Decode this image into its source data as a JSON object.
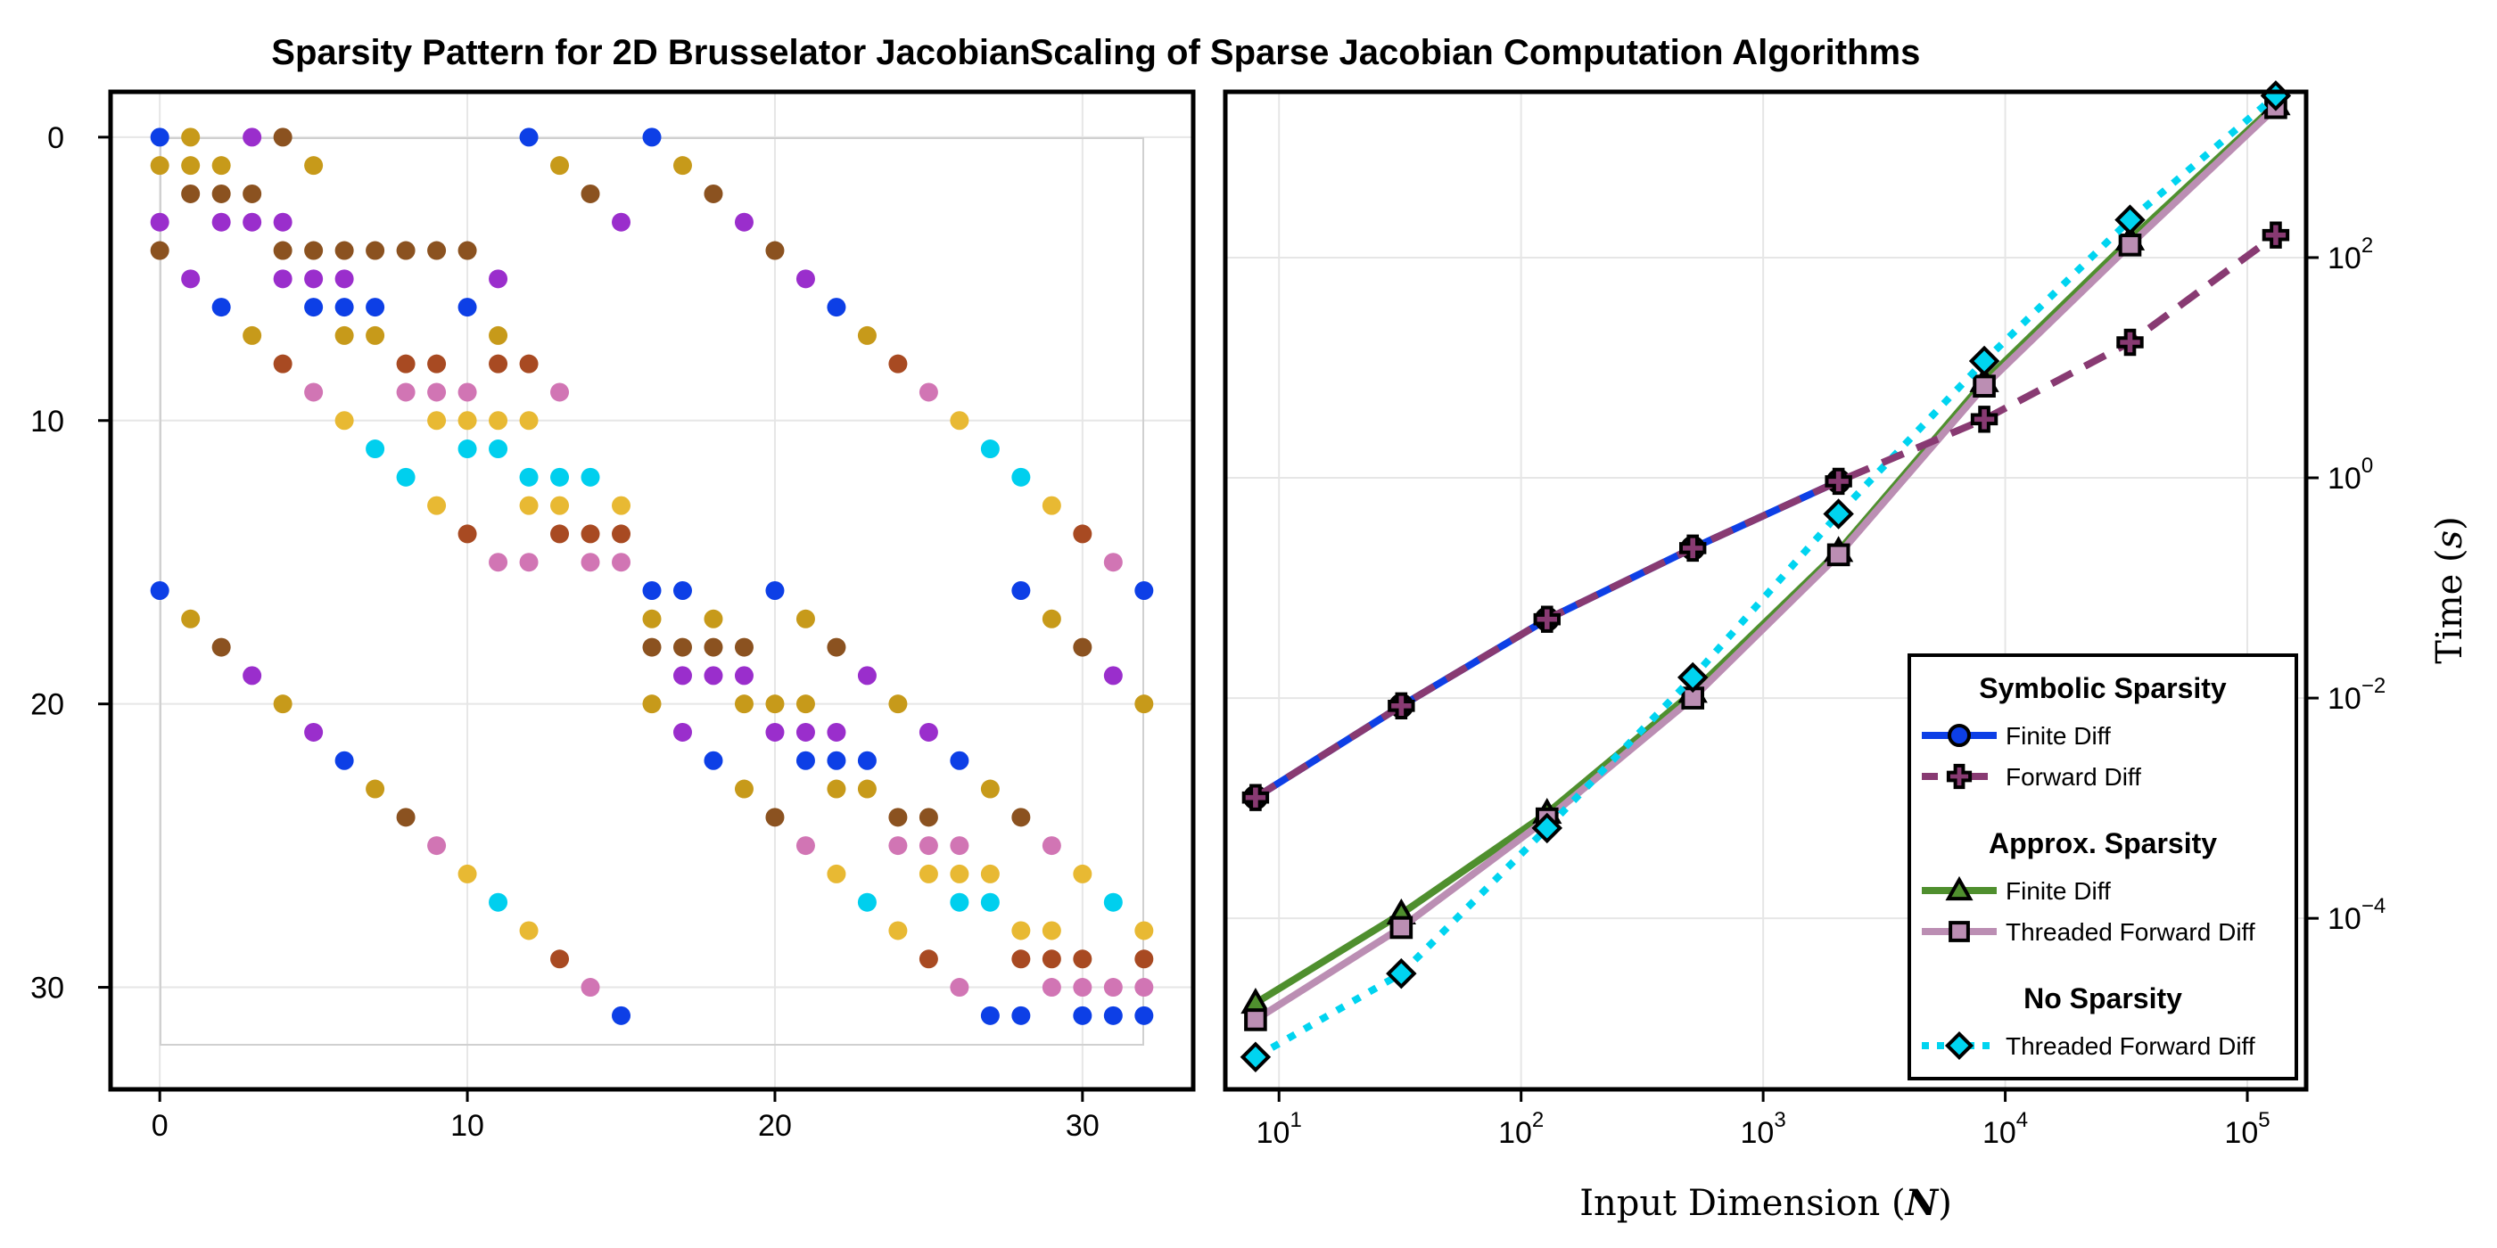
{
  "chart_data": [
    {
      "type": "scatter",
      "title": "Sparsity Pattern for 2D Brusselator Jacobian",
      "xlim": [
        -1.6,
        33.6
      ],
      "ylim": [
        -1.6,
        33.6
      ],
      "y_inverted": true,
      "grid": true,
      "xticks": [
        "0",
        "10",
        "20",
        "30"
      ],
      "yticks": [
        "0",
        "10",
        "20",
        "30"
      ],
      "tick_values": [
        0,
        10,
        20,
        30
      ],
      "colors": [
        "#0d3fe6",
        "#c79a1a",
        "#8b5220",
        "#9a2ecc",
        "#e8b933",
        "#d175b4",
        "#a84a22",
        "#00cfee"
      ],
      "points": [
        [
          0,
          0,
          0
        ],
        [
          1,
          0,
          1
        ],
        [
          3,
          0,
          3
        ],
        [
          4,
          0,
          2
        ],
        [
          12,
          0,
          0
        ],
        [
          16,
          0,
          0
        ],
        [
          0,
          1,
          1
        ],
        [
          1,
          1,
          1
        ],
        [
          2,
          1,
          1
        ],
        [
          5,
          1,
          1
        ],
        [
          13,
          1,
          1
        ],
        [
          17,
          1,
          1
        ],
        [
          1,
          2,
          2
        ],
        [
          2,
          2,
          2
        ],
        [
          3,
          2,
          2
        ],
        [
          14,
          2,
          2
        ],
        [
          18,
          2,
          2
        ],
        [
          0,
          3,
          3
        ],
        [
          2,
          3,
          3
        ],
        [
          3,
          3,
          3
        ],
        [
          4,
          3,
          3
        ],
        [
          15,
          3,
          3
        ],
        [
          19,
          3,
          3
        ],
        [
          0,
          4,
          2
        ],
        [
          4,
          4,
          2
        ],
        [
          5,
          4,
          2
        ],
        [
          6,
          4,
          2
        ],
        [
          7,
          4,
          2
        ],
        [
          8,
          4,
          2
        ],
        [
          9,
          4,
          2
        ],
        [
          10,
          4,
          2
        ],
        [
          20,
          4,
          2
        ],
        [
          1,
          5,
          3
        ],
        [
          4,
          5,
          3
        ],
        [
          5,
          5,
          3
        ],
        [
          6,
          5,
          3
        ],
        [
          11,
          5,
          3
        ],
        [
          21,
          5,
          3
        ],
        [
          2,
          6,
          0
        ],
        [
          5,
          6,
          0
        ],
        [
          6,
          6,
          0
        ],
        [
          7,
          6,
          0
        ],
        [
          10,
          6,
          0
        ],
        [
          22,
          6,
          0
        ],
        [
          3,
          7,
          1
        ],
        [
          6,
          7,
          1
        ],
        [
          7,
          7,
          1
        ],
        [
          11,
          7,
          1
        ],
        [
          23,
          7,
          1
        ],
        [
          4,
          8,
          6
        ],
        [
          8,
          8,
          6
        ],
        [
          9,
          8,
          6
        ],
        [
          11,
          8,
          6
        ],
        [
          12,
          8,
          6
        ],
        [
          24,
          8,
          6
        ],
        [
          5,
          9,
          5
        ],
        [
          8,
          9,
          5
        ],
        [
          9,
          9,
          5
        ],
        [
          10,
          9,
          5
        ],
        [
          13,
          9,
          5
        ],
        [
          25,
          9,
          5
        ],
        [
          6,
          10,
          4
        ],
        [
          9,
          10,
          4
        ],
        [
          10,
          10,
          4
        ],
        [
          11,
          10,
          4
        ],
        [
          12,
          10,
          4
        ],
        [
          26,
          10,
          4
        ],
        [
          7,
          11,
          7
        ],
        [
          10,
          11,
          7
        ],
        [
          11,
          11,
          7
        ],
        [
          27,
          11,
          7
        ],
        [
          8,
          12,
          7
        ],
        [
          12,
          12,
          7
        ],
        [
          13,
          12,
          7
        ],
        [
          14,
          12,
          7
        ],
        [
          28,
          12,
          7
        ],
        [
          9,
          13,
          4
        ],
        [
          12,
          13,
          4
        ],
        [
          13,
          13,
          4
        ],
        [
          15,
          13,
          4
        ],
        [
          29,
          13,
          4
        ],
        [
          10,
          14,
          6
        ],
        [
          13,
          14,
          6
        ],
        [
          14,
          14,
          6
        ],
        [
          15,
          14,
          6
        ],
        [
          30,
          14,
          6
        ],
        [
          11,
          15,
          5
        ],
        [
          12,
          15,
          5
        ],
        [
          14,
          15,
          5
        ],
        [
          15,
          15,
          5
        ],
        [
          31,
          15,
          5
        ],
        [
          0,
          16,
          0
        ],
        [
          16,
          16,
          0
        ],
        [
          17,
          16,
          0
        ],
        [
          20,
          16,
          0
        ],
        [
          28,
          16,
          0
        ],
        [
          32,
          16,
          0
        ],
        [
          1,
          17,
          1
        ],
        [
          16,
          17,
          1
        ],
        [
          18,
          17,
          1
        ],
        [
          21,
          17,
          1
        ],
        [
          29,
          17,
          1
        ],
        [
          2,
          18,
          2
        ],
        [
          16,
          18,
          2
        ],
        [
          17,
          18,
          2
        ],
        [
          18,
          18,
          2
        ],
        [
          19,
          18,
          2
        ],
        [
          22,
          18,
          2
        ],
        [
          30,
          18,
          2
        ],
        [
          3,
          19,
          3
        ],
        [
          17,
          19,
          3
        ],
        [
          18,
          19,
          3
        ],
        [
          19,
          19,
          3
        ],
        [
          23,
          19,
          3
        ],
        [
          31,
          19,
          3
        ],
        [
          4,
          20,
          1
        ],
        [
          16,
          20,
          1
        ],
        [
          19,
          20,
          1
        ],
        [
          20,
          20,
          1
        ],
        [
          21,
          20,
          1
        ],
        [
          24,
          20,
          1
        ],
        [
          32,
          20,
          1
        ],
        [
          5,
          21,
          3
        ],
        [
          17,
          21,
          3
        ],
        [
          20,
          21,
          3
        ],
        [
          21,
          21,
          3
        ],
        [
          22,
          21,
          3
        ],
        [
          25,
          21,
          3
        ],
        [
          6,
          22,
          0
        ],
        [
          18,
          22,
          0
        ],
        [
          21,
          22,
          0
        ],
        [
          22,
          22,
          0
        ],
        [
          23,
          22,
          0
        ],
        [
          26,
          22,
          0
        ],
        [
          7,
          23,
          1
        ],
        [
          19,
          23,
          1
        ],
        [
          22,
          23,
          1
        ],
        [
          23,
          23,
          1
        ],
        [
          27,
          23,
          1
        ],
        [
          8,
          24,
          2
        ],
        [
          20,
          24,
          2
        ],
        [
          24,
          24,
          2
        ],
        [
          25,
          24,
          2
        ],
        [
          28,
          24,
          2
        ],
        [
          9,
          25,
          5
        ],
        [
          21,
          25,
          5
        ],
        [
          24,
          25,
          5
        ],
        [
          25,
          25,
          5
        ],
        [
          26,
          25,
          5
        ],
        [
          29,
          25,
          5
        ],
        [
          10,
          26,
          4
        ],
        [
          22,
          26,
          4
        ],
        [
          25,
          26,
          4
        ],
        [
          26,
          26,
          4
        ],
        [
          27,
          26,
          4
        ],
        [
          30,
          26,
          4
        ],
        [
          11,
          27,
          7
        ],
        [
          23,
          27,
          7
        ],
        [
          26,
          27,
          7
        ],
        [
          27,
          27,
          7
        ],
        [
          31,
          27,
          7
        ],
        [
          12,
          28,
          4
        ],
        [
          24,
          28,
          4
        ],
        [
          28,
          28,
          4
        ],
        [
          29,
          28,
          4
        ],
        [
          32,
          28,
          4
        ],
        [
          13,
          29,
          6
        ],
        [
          25,
          29,
          6
        ],
        [
          28,
          29,
          6
        ],
        [
          29,
          29,
          6
        ],
        [
          30,
          29,
          6
        ],
        [
          32,
          29,
          6
        ],
        [
          14,
          30,
          5
        ],
        [
          26,
          30,
          5
        ],
        [
          29,
          30,
          5
        ],
        [
          30,
          30,
          5
        ],
        [
          31,
          30,
          5
        ],
        [
          32,
          30,
          5
        ],
        [
          15,
          31,
          0
        ],
        [
          27,
          31,
          0
        ],
        [
          28,
          31,
          0
        ],
        [
          30,
          31,
          0
        ],
        [
          31,
          31,
          0
        ],
        [
          32,
          31,
          0
        ]
      ]
    },
    {
      "type": "line",
      "title": "Scaling of Sparse Jacobian Computation Algorithms",
      "xlabel": "Input Dimension (N)",
      "ylabel": "Time (s)",
      "x_scale": "log",
      "y_scale": "log",
      "xlim": [
        6,
        175000
      ],
      "ylim": [
        2.8e-06,
        3200
      ],
      "y_axis_side": "right",
      "grid": true,
      "legend_position": "bottom-right",
      "xtick_values": [
        10,
        100,
        1000,
        10000,
        100000
      ],
      "xticks": [
        {
          "base": "10",
          "exp": "1"
        },
        {
          "base": "10",
          "exp": "2"
        },
        {
          "base": "10",
          "exp": "3"
        },
        {
          "base": "10",
          "exp": "4"
        },
        {
          "base": "10",
          "exp": "5"
        }
      ],
      "ytick_values": [
        0.0001,
        0.01,
        1,
        100
      ],
      "yticks": [
        {
          "base": "10",
          "exp": "−4"
        },
        {
          "base": "10",
          "exp": "−2"
        },
        {
          "base": "10",
          "exp": "0"
        },
        {
          "base": "10",
          "exp": "2"
        }
      ],
      "x": [
        8,
        32,
        128,
        512,
        2048,
        8192,
        32768,
        131072
      ],
      "series": [
        {
          "name": "Finite Diff",
          "group": "Symbolic Sparsity",
          "color": "#0d3fe6",
          "dash": "solid",
          "marker": "circle",
          "values": [
            0.00125,
            0.0085,
            0.052,
            0.23,
            0.93,
            null,
            null,
            null
          ]
        },
        {
          "name": "Forward Diff",
          "group": "Symbolic Sparsity",
          "color": "#883a72",
          "dash": "dashed",
          "marker": "cross",
          "values": [
            0.00125,
            0.0085,
            0.052,
            0.23,
            0.93,
            3.4,
            17,
            160
          ]
        },
        {
          "name": "Finite Diff",
          "group": "Approx. Sparsity",
          "color": "#4f8f2e",
          "dash": "solid",
          "marker": "triangle",
          "values": [
            1.7e-05,
            0.00011,
            0.0009,
            0.0113,
            0.215,
            7.5,
            145,
            2450
          ]
        },
        {
          "name": "Threaded Forward Diff",
          "group": "Approx. Sparsity",
          "color": "#bb8eb3",
          "dash": "solid",
          "marker": "square",
          "values": [
            1.2e-05,
            8.25e-05,
            0.0008,
            0.01,
            0.2,
            6.8,
            130,
            2300
          ]
        },
        {
          "name": "Threaded Forward Diff",
          "group": "No Sparsity",
          "color": "#00d4f0",
          "dash": "dotted",
          "marker": "diamond",
          "values": [
            5.5e-06,
            3.15e-05,
            0.00066,
            0.0154,
            0.47,
            11.5,
            220,
            2950
          ]
        }
      ],
      "legend": {
        "groups": [
          {
            "title": "Symbolic Sparsity",
            "series": [
              0,
              1
            ]
          },
          {
            "title": "Approx. Sparsity",
            "series": [
              2,
              3
            ]
          },
          {
            "title": "No Sparsity",
            "series": [
              4
            ]
          }
        ]
      }
    }
  ]
}
